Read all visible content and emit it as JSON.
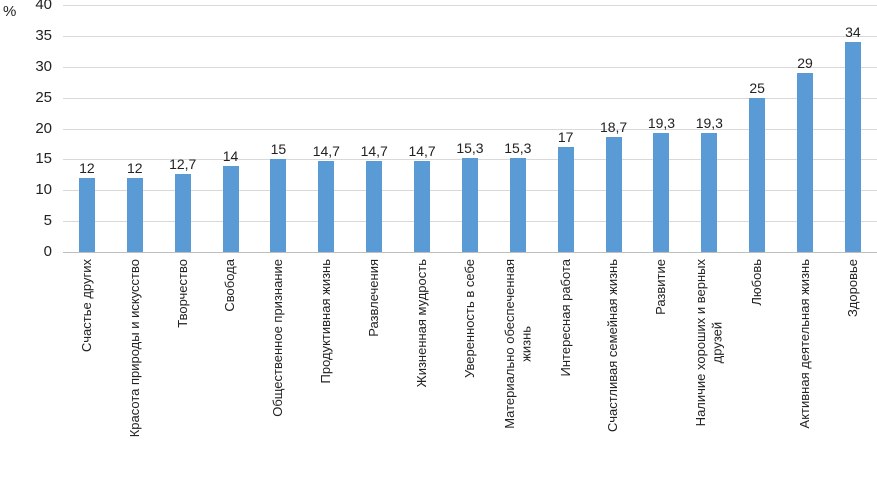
{
  "chart_data": {
    "type": "bar",
    "ylabel": "%",
    "xlabel": "",
    "ylim": [
      0,
      40
    ],
    "yticks": [
      0,
      5,
      10,
      15,
      20,
      25,
      30,
      35,
      40
    ],
    "grid": true,
    "legend": false,
    "bar_color": "#5B9BD5",
    "gridline_color": "#d9d9d9",
    "axis_line_color": "#bfbfbf",
    "categories": [
      "Счастье других",
      "Красота природы и искусство",
      "Творчество",
      "Свобода",
      "Общественное признание",
      "Продуктивная жизнь",
      "Развлечения",
      "Жизненная мудрость",
      "Уверенность в себе",
      "Материально обеспеченная\nжизнь",
      "Интересная работа",
      "Счастливая семейная жизнь",
      "Развитие",
      "Наличие хороших и верных\nдрузей",
      "Любовь",
      "Активная деятельная жизнь",
      "Здоровье"
    ],
    "values": [
      12,
      12,
      12.7,
      14,
      15,
      14.7,
      14.7,
      14.7,
      15.3,
      15.3,
      17,
      18.7,
      19.3,
      19.3,
      25,
      29,
      34
    ],
    "value_labels": [
      "12",
      "12",
      "12,7",
      "14",
      "15",
      "14,7",
      "14,7",
      "14,7",
      "15,3",
      "15,3",
      "17",
      "18,7",
      "19,3",
      "19,3",
      "25",
      "29",
      "34"
    ]
  }
}
